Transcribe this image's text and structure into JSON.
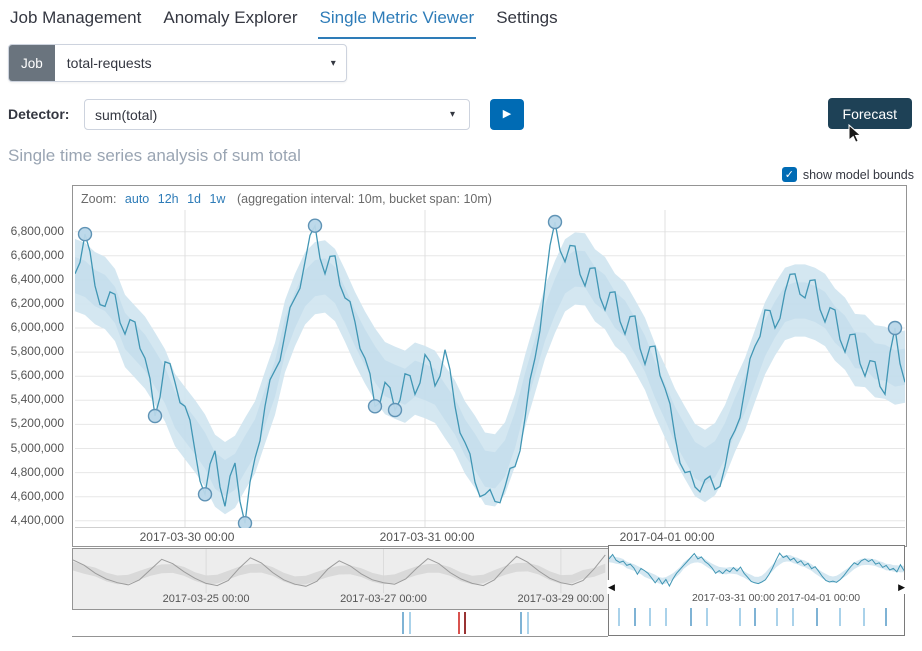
{
  "nav": {
    "tabs": [
      {
        "label": "Job Management",
        "active": false
      },
      {
        "label": "Anomaly Explorer",
        "active": false
      },
      {
        "label": "Single Metric Viewer",
        "active": true
      },
      {
        "label": "Settings",
        "active": false
      }
    ]
  },
  "job_bar": {
    "badge": "Job",
    "value": "total-requests"
  },
  "detector": {
    "label": "Detector:",
    "value": "sum(total)",
    "forecast_label": "Forecast"
  },
  "title": "Single time series analysis of sum total",
  "options": {
    "show_model_bounds_label": "show model bounds",
    "checked": true
  },
  "chart_header": {
    "zoom_label": "Zoom:",
    "zoom_options": [
      "auto",
      "12h",
      "1d",
      "1w"
    ],
    "aggregation_note": "(aggregation interval: 10m, bucket span: 10m)"
  },
  "colors": {
    "accent": "#2e7cb8",
    "line": "#4196b4",
    "band": "#cfe4f0",
    "band_inner": "#bcd9ea",
    "anomaly_fill": "#b9d7e9",
    "anomaly_stroke": "#5f93b5",
    "forecast_bg": "#1e4156",
    "play_bg": "#006bb4",
    "badge_bg": "#6a747e",
    "checkbox_bg": "#006bb4",
    "context_line": "#9c9c9c",
    "context_band": "#d6d6d6"
  },
  "chart_data": {
    "main": {
      "type": "line",
      "unit": "sum(total)",
      "step_hours": 1,
      "start": "2017-03-29 13:00",
      "ylim": [
        4340000,
        6980000
      ],
      "y_ticks": [
        4400000,
        4600000,
        4800000,
        5000000,
        5200000,
        5400000,
        5600000,
        5800000,
        6000000,
        6200000,
        6400000,
        6600000,
        6800000
      ],
      "x_ticks": [
        {
          "t": 11,
          "label": "2017-03-30 00:00"
        },
        {
          "t": 35,
          "label": "2017-03-31 00:00"
        },
        {
          "t": 59,
          "label": "2017-04-01 00:00"
        }
      ],
      "bounds_offset": 300000,
      "noise_amplitude": 70000,
      "series": [
        6450000,
        6780000,
        6350000,
        6180000,
        6280000,
        5950000,
        6050000,
        5750000,
        5270000,
        5720000,
        5550000,
        5350000,
        4980000,
        4620000,
        4980000,
        4520000,
        4880000,
        4380000,
        4920000,
        5350000,
        5650000,
        5950000,
        6250000,
        6550000,
        6850000,
        6450000,
        6600000,
        6250000,
        6050000,
        5750000,
        5350000,
        5550000,
        5320000,
        5620000,
        5450000,
        5780000,
        5520000,
        5820000,
        5350000,
        5050000,
        4720000,
        4620000,
        4560000,
        4680000,
        4850000,
        5250000,
        5750000,
        6350000,
        6880000,
        6550000,
        6680000,
        6350000,
        6500000,
        6150000,
        6300000,
        5950000,
        6100000,
        5700000,
        5850000,
        5500000,
        5100000,
        4800000,
        4680000,
        4740000,
        4660000,
        4850000,
        5150000,
        5500000,
        5850000,
        6150000,
        6000000,
        6300000,
        6450000,
        6250000,
        6400000,
        6050000,
        6150000,
        5800000,
        5950000,
        5600000,
        5720000,
        5450000,
        6000000,
        5550000
      ],
      "anomalies": [
        {
          "t": 1,
          "value": 6780000
        },
        {
          "t": 8,
          "value": 5270000
        },
        {
          "t": 13,
          "value": 4620000
        },
        {
          "t": 17,
          "value": 4380000
        },
        {
          "t": 24,
          "value": 6850000
        },
        {
          "t": 30,
          "value": 5350000
        },
        {
          "t": 32,
          "value": 5320000
        },
        {
          "t": 48,
          "value": 6880000
        },
        {
          "t": 82,
          "value": 6000000
        }
      ]
    },
    "context": {
      "type": "line",
      "step_hours": 3,
      "start": "2017-03-23 12:00",
      "visible_hours": 145,
      "ylim": [
        4400000,
        7000000
      ],
      "bounds_offset": 300000,
      "x_ticks": [
        {
          "t": 36,
          "label": "2017-03-25 00:00"
        },
        {
          "t": 84,
          "label": "2017-03-27 00:00"
        },
        {
          "t": 132,
          "label": "2017-03-29 00:00"
        }
      ],
      "series": [
        6450000,
        6100000,
        5550000,
        5150000,
        4900000,
        4750000,
        5100000,
        5800000,
        6500000,
        6200000,
        5650000,
        5200000,
        4850000,
        4700000,
        5050000,
        5900000,
        6600000,
        6250000,
        5600000,
        5100000,
        4800000,
        4650000,
        5000000,
        5850000,
        6400000,
        6050000,
        5500000,
        5100000,
        4900000,
        4800000,
        5150000,
        5900000,
        6550000,
        6200000,
        5600000,
        5150000,
        4850000,
        4700000,
        5100000,
        5950000,
        6700000,
        6300000,
        5700000,
        5200000,
        4900000,
        4750000,
        5050000,
        5850000,
        6800000,
        6400000,
        5700000,
        5150000,
        4600000,
        4500000,
        5000000,
        5900000,
        6850000,
        6500000,
        5750000,
        5200000,
        4650000,
        4600000,
        5050000,
        5950000,
        6900000,
        6550000,
        5800000,
        5300000,
        4700000,
        4650000,
        5100000,
        6000000,
        6450000,
        6200000,
        5700000,
        5300000,
        5000000
      ],
      "lane_ticks": [
        {
          "f": 0.615,
          "c": "#7fb3d5"
        },
        {
          "f": 0.628,
          "c": "#aad2ea"
        },
        {
          "f": 0.72,
          "c": "#d9534f"
        },
        {
          "f": 0.732,
          "c": "#993333"
        },
        {
          "f": 0.835,
          "c": "#7fb3d5"
        },
        {
          "f": 0.848,
          "c": "#aad2ea"
        }
      ]
    },
    "selection": {
      "ylim": [
        4300000,
        7050000
      ],
      "bounds_offset": 250000,
      "x_ticks": [
        {
          "t": 35,
          "label": "2017-03-31 00:00"
        },
        {
          "t": 59,
          "label": "2017-04-01 00:00"
        }
      ],
      "lane_ticks": [
        {
          "f": 0.03,
          "c": "#aad2ea"
        },
        {
          "f": 0.085,
          "c": "#7fb3d5"
        },
        {
          "f": 0.135,
          "c": "#aad2ea"
        },
        {
          "f": 0.19,
          "c": "#aad2ea"
        },
        {
          "f": 0.275,
          "c": "#7fb3d5"
        },
        {
          "f": 0.33,
          "c": "#aad2ea"
        },
        {
          "f": 0.44,
          "c": "#aad2ea"
        },
        {
          "f": 0.49,
          "c": "#7fb3d5"
        },
        {
          "f": 0.565,
          "c": "#aad2ea"
        },
        {
          "f": 0.62,
          "c": "#aad2ea"
        },
        {
          "f": 0.7,
          "c": "#7fb3d5"
        },
        {
          "f": 0.78,
          "c": "#aad2ea"
        },
        {
          "f": 0.86,
          "c": "#aad2ea"
        },
        {
          "f": 0.935,
          "c": "#7fb3d5"
        }
      ]
    }
  }
}
